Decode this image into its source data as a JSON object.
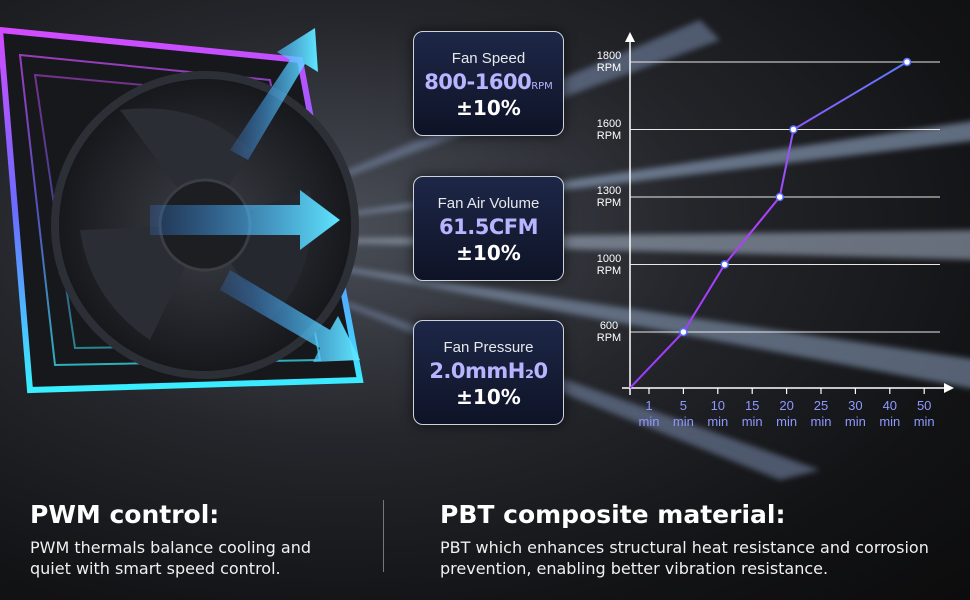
{
  "specs": [
    {
      "title": "Fan Speed",
      "value": "800-1600",
      "unit": "RPM",
      "tolerance": "±10%"
    },
    {
      "title": "Fan Air Volume",
      "value": "61.5CFM",
      "tolerance": "±10%"
    },
    {
      "title": "Fan Pressure",
      "value": "2.0mmH₂0",
      "tolerance": "±10%"
    }
  ],
  "chart_data": {
    "type": "line",
    "x": [
      0,
      5,
      11,
      19,
      21,
      45
    ],
    "values": [
      0,
      600,
      1000,
      1300,
      1600,
      1800
    ],
    "xlim": [
      0,
      50
    ],
    "ylim": [
      0,
      1800
    ],
    "xticks": [
      {
        "value": 1,
        "label": "1 min"
      },
      {
        "value": 5,
        "label": "5 min"
      },
      {
        "value": 10,
        "label": "10 min"
      },
      {
        "value": 15,
        "label": "15 min"
      },
      {
        "value": 20,
        "label": "20 min"
      },
      {
        "value": 25,
        "label": "25 min"
      },
      {
        "value": 30,
        "label": "30 min"
      },
      {
        "value": 40,
        "label": "40 min"
      },
      {
        "value": 50,
        "label": "50 min"
      }
    ],
    "yticks": [
      {
        "value": 600,
        "label": "600 RPM"
      },
      {
        "value": 1000,
        "label": "1000 RPM"
      },
      {
        "value": 1300,
        "label": "1300 RPM"
      },
      {
        "value": 1600,
        "label": "1600 RPM"
      },
      {
        "value": 1800,
        "label": "1800 RPM"
      }
    ],
    "grid": true
  },
  "sections": [
    {
      "title": "PWM control:",
      "text": "PWM thermals balance cooling and quiet with smart speed control."
    },
    {
      "title": "PBT composite material:",
      "text": "PBT which enhances structural heat resistance and corrosion prevention, enabling better vibration resistance."
    }
  ]
}
